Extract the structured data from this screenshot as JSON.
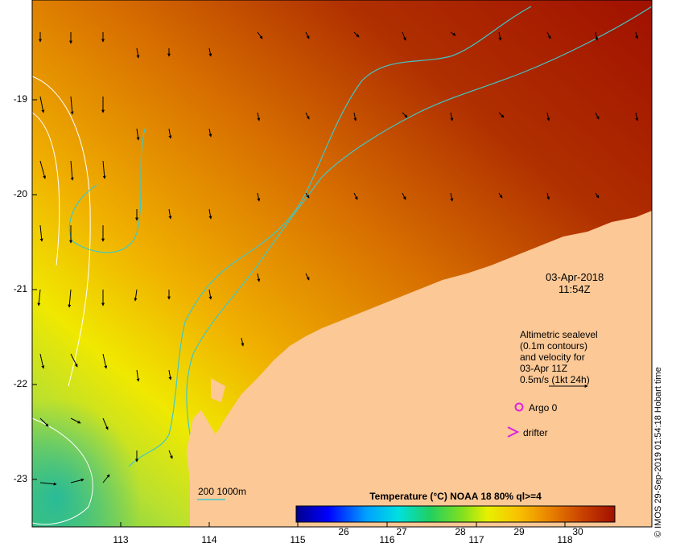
{
  "map": {
    "date": "03-Apr-2018",
    "time": "11:54Z",
    "lat_ticks": [
      "-19",
      "-20",
      "-21",
      "-22",
      "-23"
    ],
    "lon_ticks": [
      "113",
      "114",
      "115",
      "116",
      "117",
      "118"
    ],
    "altimetry_note": [
      "Altimetric sealevel",
      "(0.1m contours)",
      "and velocity for",
      "03-Apr 11Z"
    ],
    "velocity_scale_label": "0.5m/s (1kt 24h)",
    "argo_label": "Argo 0",
    "drifter_label": "drifter",
    "isobath_label": "200  1000m",
    "credit": "© IMOS 29-Sep-2019 01:54:18 Hobart time"
  },
  "colorbar": {
    "title": "Temperature (°C) NOAA 18 80% ql>=4",
    "ticks": [
      "26",
      "27",
      "28",
      "29",
      "30"
    ],
    "colors": {
      "land": "#fbc896",
      "coast_contour": "#40c8c8",
      "argo": "#e020e0",
      "drifter": "#e020e0"
    }
  }
}
